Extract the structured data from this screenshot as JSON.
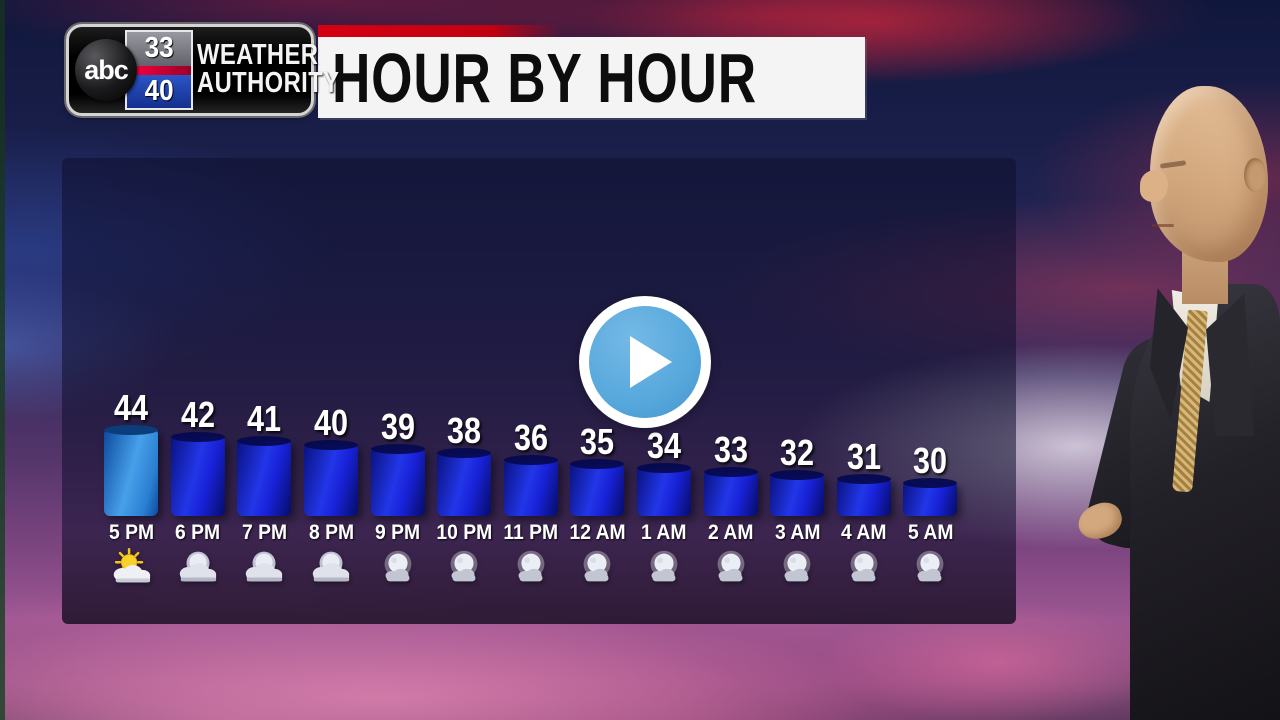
{
  "branding": {
    "station_logo": {
      "network": "abc",
      "channel_top": "33",
      "channel_bottom": "40",
      "line1": "WEATHER",
      "line2": "AUTHORITY"
    }
  },
  "header": {
    "title": "HOUR BY HOUR",
    "accent_color": "#c40011",
    "banner_bg": "#f4f4f4"
  },
  "chart_data": {
    "type": "bar",
    "title": "HOUR BY HOUR",
    "categories": [
      "5 PM",
      "6 PM",
      "7 PM",
      "8 PM",
      "9 PM",
      "10 PM",
      "11 PM",
      "12 AM",
      "1 AM",
      "2 AM",
      "3 AM",
      "4 AM",
      "5 AM"
    ],
    "values": [
      44,
      42,
      41,
      40,
      39,
      38,
      36,
      35,
      34,
      33,
      32,
      31,
      30
    ],
    "icons": [
      "partly-sunny-icon",
      "cloudy-moon-icon",
      "cloudy-moon-icon",
      "cloudy-moon-icon",
      "moon-cloud-icon",
      "moon-cloud-icon",
      "moon-cloud-icon",
      "moon-cloud-icon",
      "moon-cloud-icon",
      "moon-cloud-icon",
      "moon-cloud-icon",
      "moon-cloud-icon",
      "moon-cloud-icon"
    ],
    "value_labels_shown": true,
    "legend": "none",
    "axes": "none",
    "bar_color": "#1a22d8",
    "first_bar_color": "#2f86d8"
  },
  "overlay": {
    "play_icon": "play-icon",
    "play_button_color": "#57a8dc"
  }
}
